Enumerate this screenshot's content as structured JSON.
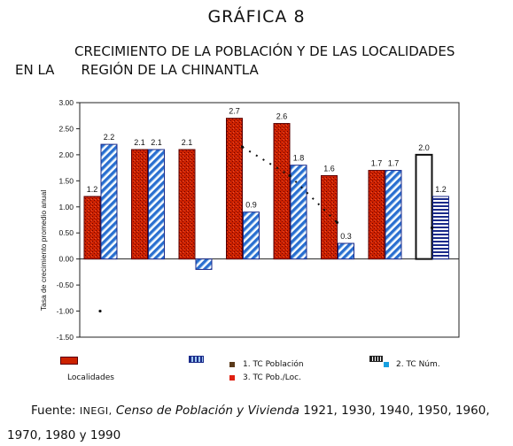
{
  "header": {
    "title": "GRÁFICA 8",
    "subtitle_line1": "CRECIMIENTO DE LA POBLACIÓN Y DE LAS LOCALIDADES",
    "subtitle_line2a": "EN LA",
    "subtitle_line2b": "REGIÓN DE LA CHINANTLA"
  },
  "source": {
    "label": "Fuente:",
    "org": "INEGI,",
    "work": "Censo de Población y Vivienda",
    "years_line1": "1921, 1930, 1940, 1950, 1960,",
    "years_line2": "1970, 1980 y 1990"
  },
  "legend": {
    "localidades": "Localidades",
    "item1": "1.  TC Población",
    "item2": "2.  TC Núm.",
    "item3": "3.  TC Pob./Loc."
  },
  "colors": {
    "red": "#cc2200",
    "dark_red": "#7a0000",
    "blue": "#2a6fd0",
    "light_blue": "#9ec8ef",
    "legend_brown": "#5a3a1a",
    "legend_red": "#e02010",
    "legend_cyan": "#18a0e0"
  },
  "chart_data": {
    "type": "bar",
    "ylabel": "Tasa de crecimiento promedio anual",
    "ylim": [
      -1.5,
      3.0
    ],
    "yticks": [
      "3.00",
      "2.50",
      "2.00",
      "1.50",
      "1.00",
      "0.50",
      "0.00",
      "-0.50",
      "-1.00",
      "-1.50"
    ],
    "grid": false,
    "series": [
      {
        "values": [
          1.2,
          2.1,
          2.1,
          2.7,
          2.6,
          1.6,
          1.7,
          2.0
        ]
      },
      {
        "values": [
          2.2,
          2.1,
          -0.2,
          0.9,
          1.8,
          0.3,
          1.7,
          1.2
        ]
      }
    ],
    "labels_series1": [
      "1.2",
      "2.1",
      "2.1",
      "2.7",
      "2.6",
      "1.6",
      "1.7",
      "2.0"
    ],
    "labels_series2": [
      "2.2",
      "2.1",
      "",
      "0.9",
      "1.8",
      "0.3",
      "1.7",
      "1.2"
    ],
    "dotted_line": [
      -1.0,
      null,
      null,
      2.15,
      1.6,
      0.7,
      null,
      0.6
    ]
  }
}
